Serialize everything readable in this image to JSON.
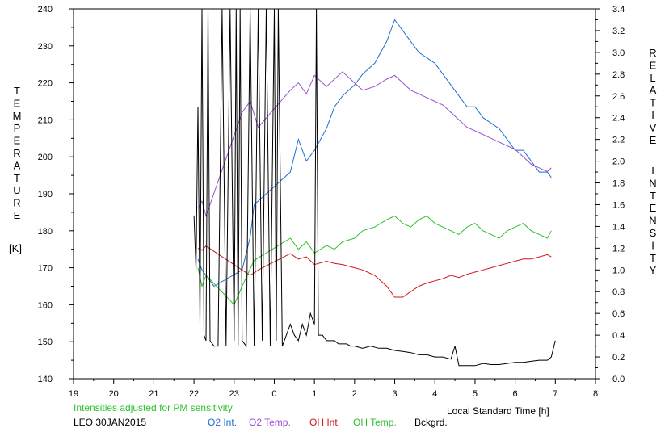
{
  "chart_data": {
    "type": "line",
    "title": "",
    "left_axis_label_letters": [
      "T",
      "E",
      "M",
      "P",
      "E",
      "R",
      "A",
      "T",
      "U",
      "R",
      "E"
    ],
    "left_axis_unit": "[K]",
    "right_axis_label_letters_1": [
      "R",
      "E",
      "L",
      "A",
      "T",
      "I",
      "V",
      "E"
    ],
    "right_axis_label_letters_2": [
      "I",
      "N",
      "T",
      "E",
      "N",
      "S",
      "I",
      "T",
      "Y"
    ],
    "xlabel": "Local Standard Time [h]",
    "xlim": [
      19,
      32
    ],
    "x_tick_labels": [
      "19",
      "20",
      "21",
      "22",
      "23",
      "0",
      "1",
      "2",
      "3",
      "4",
      "5",
      "6",
      "7",
      "8"
    ],
    "ylim_left": [
      140,
      240
    ],
    "y_left_ticks": [
      140,
      150,
      160,
      170,
      180,
      190,
      200,
      210,
      220,
      230,
      240
    ],
    "ylim_right": [
      0,
      3.4
    ],
    "y_right_ticks": [
      "0.0",
      "0.2",
      "0.4",
      "0.6",
      "0.8",
      "1.0",
      "1.2",
      "1.4",
      "1.6",
      "1.8",
      "2.0",
      "2.2",
      "2.4",
      "2.6",
      "2.8",
      "3.0",
      "3.2",
      "3.4"
    ],
    "note": "Intensities adjusted for PM sensitivity",
    "station": "LEO 30JAN2015",
    "legend_placement": "bottom",
    "colors": {
      "o2_int": "#1e6fd0",
      "o2_temp": "#9a4fd6",
      "oh_int": "#d01818",
      "oh_temp": "#2fc02f",
      "bckgrd": "#000000"
    },
    "series": [
      {
        "name": "O2 Int.",
        "axis": "right",
        "color": "#1e6fd0",
        "x": [
          22.1,
          22.2,
          22.3,
          22.4,
          22.5,
          23.2,
          23.4,
          23.5,
          24.4,
          24.6,
          24.8,
          25.0,
          25.3,
          25.5,
          25.7,
          26.0,
          26.2,
          26.5,
          26.8,
          27.0,
          27.2,
          27.4,
          27.6,
          27.8,
          28.0,
          28.2,
          28.4,
          28.6,
          28.8,
          29.0,
          29.2,
          29.4,
          29.6,
          29.8,
          30.0,
          30.2,
          30.4,
          30.6,
          30.8,
          30.9
        ],
        "values": [
          1.1,
          1.0,
          0.95,
          0.9,
          0.85,
          1.0,
          1.3,
          1.6,
          1.9,
          2.2,
          2.0,
          2.1,
          2.3,
          2.5,
          2.6,
          2.7,
          2.8,
          2.9,
          3.1,
          3.3,
          3.2,
          3.1,
          3.0,
          2.95,
          2.9,
          2.8,
          2.7,
          2.6,
          2.5,
          2.5,
          2.4,
          2.35,
          2.3,
          2.2,
          2.1,
          2.1,
          2.0,
          1.9,
          1.9,
          1.85
        ]
      },
      {
        "name": "O2 Temp.",
        "axis": "left",
        "color": "#9a4fd6",
        "x": [
          22.1,
          22.2,
          22.3,
          23.2,
          23.4,
          23.6,
          24.4,
          24.6,
          24.8,
          25.0,
          25.3,
          25.5,
          25.7,
          26.0,
          26.2,
          26.5,
          26.8,
          27.0,
          27.2,
          27.4,
          27.6,
          27.8,
          28.0,
          28.2,
          28.4,
          28.6,
          28.8,
          29.0,
          29.2,
          29.4,
          29.6,
          29.8,
          30.0,
          30.2,
          30.4,
          30.6,
          30.8,
          30.9
        ],
        "values": [
          186,
          188,
          184,
          212,
          215,
          208,
          218,
          220,
          217,
          222,
          219,
          221,
          223,
          220,
          218,
          219,
          221,
          222,
          220,
          218,
          217,
          216,
          215,
          214,
          212,
          210,
          208,
          207,
          206,
          205,
          204,
          203,
          202,
          200,
          198,
          197,
          196,
          197
        ]
      },
      {
        "name": "OH Int.",
        "axis": "right",
        "color": "#d01818",
        "x": [
          22.1,
          22.2,
          22.3,
          23.4,
          23.6,
          24.4,
          24.6,
          24.8,
          25.0,
          25.3,
          25.5,
          25.7,
          26.0,
          26.2,
          26.5,
          26.8,
          27.0,
          27.2,
          27.4,
          27.6,
          27.8,
          28.0,
          28.2,
          28.4,
          28.6,
          28.8,
          29.0,
          29.2,
          29.4,
          29.6,
          29.8,
          30.0,
          30.2,
          30.4,
          30.6,
          30.8,
          30.9
        ],
        "values": [
          1.2,
          1.18,
          1.22,
          0.95,
          1.0,
          1.15,
          1.1,
          1.12,
          1.05,
          1.08,
          1.06,
          1.05,
          1.02,
          1.0,
          0.95,
          0.85,
          0.75,
          0.75,
          0.8,
          0.85,
          0.88,
          0.9,
          0.92,
          0.95,
          0.93,
          0.96,
          0.98,
          1.0,
          1.02,
          1.04,
          1.06,
          1.08,
          1.1,
          1.1,
          1.12,
          1.14,
          1.12
        ]
      },
      {
        "name": "OH Temp.",
        "axis": "left",
        "color": "#2fc02f",
        "x": [
          22.1,
          22.2,
          22.3,
          23.0,
          23.2,
          23.5,
          24.4,
          24.6,
          24.8,
          25.0,
          25.3,
          25.5,
          25.7,
          26.0,
          26.2,
          26.5,
          26.8,
          27.0,
          27.2,
          27.4,
          27.6,
          27.8,
          28.0,
          28.2,
          28.4,
          28.6,
          28.8,
          29.0,
          29.2,
          29.4,
          29.6,
          29.8,
          30.0,
          30.2,
          30.4,
          30.6,
          30.8,
          30.9
        ],
        "values": [
          170,
          165,
          168,
          160,
          165,
          172,
          178,
          175,
          177,
          174,
          176,
          175,
          177,
          178,
          180,
          181,
          183,
          184,
          182,
          181,
          183,
          184,
          182,
          181,
          180,
          179,
          181,
          182,
          180,
          179,
          178,
          180,
          181,
          182,
          180,
          179,
          178,
          180
        ]
      },
      {
        "name": "Bckgrd.",
        "axis": "right",
        "color": "#000000",
        "x": [
          22.0,
          22.05,
          22.1,
          22.15,
          22.2,
          22.25,
          22.3,
          22.35,
          22.4,
          22.5,
          22.6,
          22.7,
          22.8,
          22.9,
          23.0,
          23.05,
          23.1,
          23.15,
          23.2,
          23.3,
          23.4,
          23.5,
          23.6,
          23.7,
          23.8,
          23.9,
          24.0,
          24.05,
          24.1,
          24.2,
          24.3,
          24.4,
          24.5,
          24.6,
          24.7,
          24.8,
          24.9,
          25.0,
          25.05,
          25.1,
          25.2,
          25.3,
          25.4,
          25.5,
          25.6,
          25.7,
          25.8,
          25.9,
          26.0,
          26.2,
          26.4,
          26.6,
          26.8,
          27.0,
          27.2,
          27.4,
          27.6,
          27.8,
          28.0,
          28.2,
          28.4,
          28.5,
          28.6,
          28.8,
          29.0,
          29.2,
          29.4,
          29.6,
          29.8,
          30.0,
          30.2,
          30.4,
          30.6,
          30.8,
          30.9,
          31.0
        ],
        "values": [
          1.5,
          1.0,
          2.5,
          0.5,
          3.4,
          0.4,
          0.35,
          3.4,
          0.35,
          0.3,
          0.3,
          3.4,
          0.3,
          3.4,
          0.35,
          3.4,
          0.3,
          3.4,
          0.35,
          0.3,
          3.4,
          0.3,
          3.4,
          0.35,
          3.4,
          0.3,
          3.4,
          0.35,
          3.4,
          0.3,
          0.4,
          0.5,
          0.4,
          0.35,
          0.5,
          0.4,
          0.6,
          0.5,
          3.4,
          0.4,
          0.4,
          0.35,
          0.35,
          0.35,
          0.32,
          0.32,
          0.32,
          0.3,
          0.3,
          0.28,
          0.3,
          0.28,
          0.28,
          0.26,
          0.25,
          0.24,
          0.22,
          0.22,
          0.2,
          0.2,
          0.18,
          0.3,
          0.12,
          0.12,
          0.12,
          0.14,
          0.13,
          0.13,
          0.14,
          0.15,
          0.15,
          0.16,
          0.17,
          0.17,
          0.2,
          0.35
        ]
      }
    ]
  }
}
